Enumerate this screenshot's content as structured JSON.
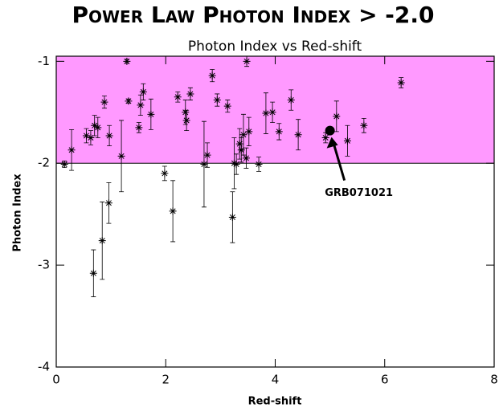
{
  "chart_data": {
    "type": "scatter",
    "title": "Power Law Photon Index > -2.0",
    "subtitle": "Photon Index vs Red-shift",
    "x_label": "Red-shift",
    "y_label": "Photon Index",
    "xlim": [
      0,
      8
    ],
    "xticks": [
      0,
      2,
      4,
      6,
      8
    ],
    "ylim": [
      -4,
      -0.95
    ],
    "yticks": [
      -4,
      -3,
      -2,
      -1
    ],
    "shaded_range": [
      -2,
      -0.95
    ],
    "shade_color": "#ff99ff",
    "color": "#000000",
    "x": [
      0.15,
      0.28,
      0.55,
      0.63,
      0.7,
      0.76,
      0.88,
      0.97,
      1.29,
      1.32,
      1.19,
      1.51,
      1.54,
      1.59,
      1.73,
      1.98,
      2.13,
      2.22,
      2.36,
      2.38,
      2.45,
      2.7,
      2.76,
      2.85,
      2.94,
      3.13,
      3.22,
      3.25,
      3.29,
      3.35,
      3.38,
      3.42,
      3.47,
      3.48,
      3.52,
      3.7,
      3.83,
      3.95,
      4.07,
      4.29,
      4.42,
      4.92,
      5.12,
      5.32,
      5.62,
      6.3,
      0.68,
      0.84,
      0.96
    ],
    "values": [
      -2.01,
      -1.87,
      -1.73,
      -1.75,
      -1.63,
      -1.65,
      -1.4,
      -1.73,
      -1.0,
      -1.39,
      -1.93,
      -1.65,
      -1.43,
      -1.3,
      -1.52,
      -2.1,
      -2.47,
      -1.35,
      -1.5,
      -1.58,
      -1.32,
      -2.01,
      -1.92,
      -1.14,
      -1.38,
      -1.44,
      -2.53,
      -2.0,
      -2.01,
      -1.81,
      -1.87,
      -1.72,
      -1.95,
      -1.0,
      -1.69,
      -2.01,
      -1.51,
      -1.5,
      -1.69,
      -1.38,
      -1.72,
      -1.75,
      -1.54,
      -1.78,
      -1.63,
      -1.21,
      -3.08,
      -2.76,
      -2.39
    ],
    "errors": [
      0.03,
      0.2,
      0.07,
      0.07,
      0.1,
      0.1,
      0.06,
      0.1,
      0.02,
      0.02,
      0.35,
      0.05,
      0.1,
      0.08,
      0.15,
      0.07,
      0.3,
      0.05,
      0.12,
      0.1,
      0.06,
      0.42,
      0.12,
      0.06,
      0.06,
      0.06,
      0.25,
      0.25,
      0.1,
      0.15,
      0.12,
      0.2,
      0.1,
      0.05,
      0.14,
      0.07,
      0.2,
      0.1,
      0.08,
      0.1,
      0.15,
      0.05,
      0.15,
      0.15,
      0.07,
      0.05,
      0.23,
      0.38,
      0.2
    ],
    "highlight": {
      "label": "GRB071021",
      "x": 5.0,
      "value": -1.68
    }
  }
}
